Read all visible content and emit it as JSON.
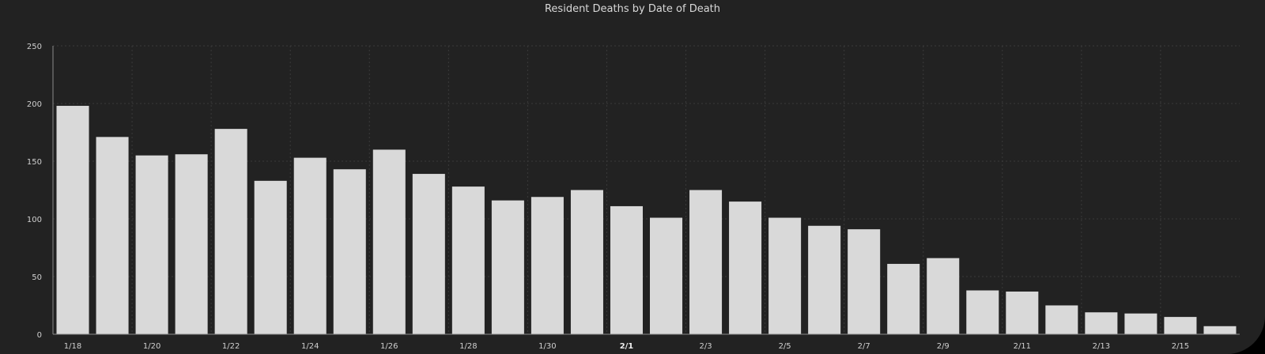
{
  "chart_data": {
    "type": "bar",
    "title": "Resident Deaths by Date of Death",
    "xlabel": "",
    "ylabel": "",
    "ylim": [
      0,
      250
    ],
    "yticks": [
      0,
      50,
      100,
      150,
      200,
      250
    ],
    "grid": true,
    "categories": [
      "1/18",
      "1/19",
      "1/20",
      "1/21",
      "1/22",
      "1/23",
      "1/24",
      "1/25",
      "1/26",
      "1/27",
      "1/28",
      "1/29",
      "1/30",
      "1/31",
      "2/1",
      "2/2",
      "2/3",
      "2/4",
      "2/5",
      "2/6",
      "2/7",
      "2/8",
      "2/9",
      "2/10",
      "2/11",
      "2/12",
      "2/13",
      "2/14",
      "2/15",
      "2/16"
    ],
    "xtick_labels": [
      "1/18",
      "1/20",
      "1/22",
      "1/24",
      "1/26",
      "1/28",
      "1/30",
      "2/1",
      "2/3",
      "2/5",
      "2/7",
      "2/9",
      "2/11",
      "2/13",
      "2/15"
    ],
    "bold_tick": "2/1",
    "values": [
      198,
      171,
      155,
      156,
      178,
      133,
      153,
      143,
      160,
      139,
      128,
      116,
      119,
      125,
      111,
      101,
      125,
      115,
      101,
      94,
      91,
      61,
      66,
      38,
      37,
      25,
      19,
      18,
      15,
      7
    ],
    "colors": {
      "background": "#222222",
      "bar": "#d9d9d9",
      "grid": "#3a3a3a",
      "axis": "#8a8a8a"
    }
  }
}
